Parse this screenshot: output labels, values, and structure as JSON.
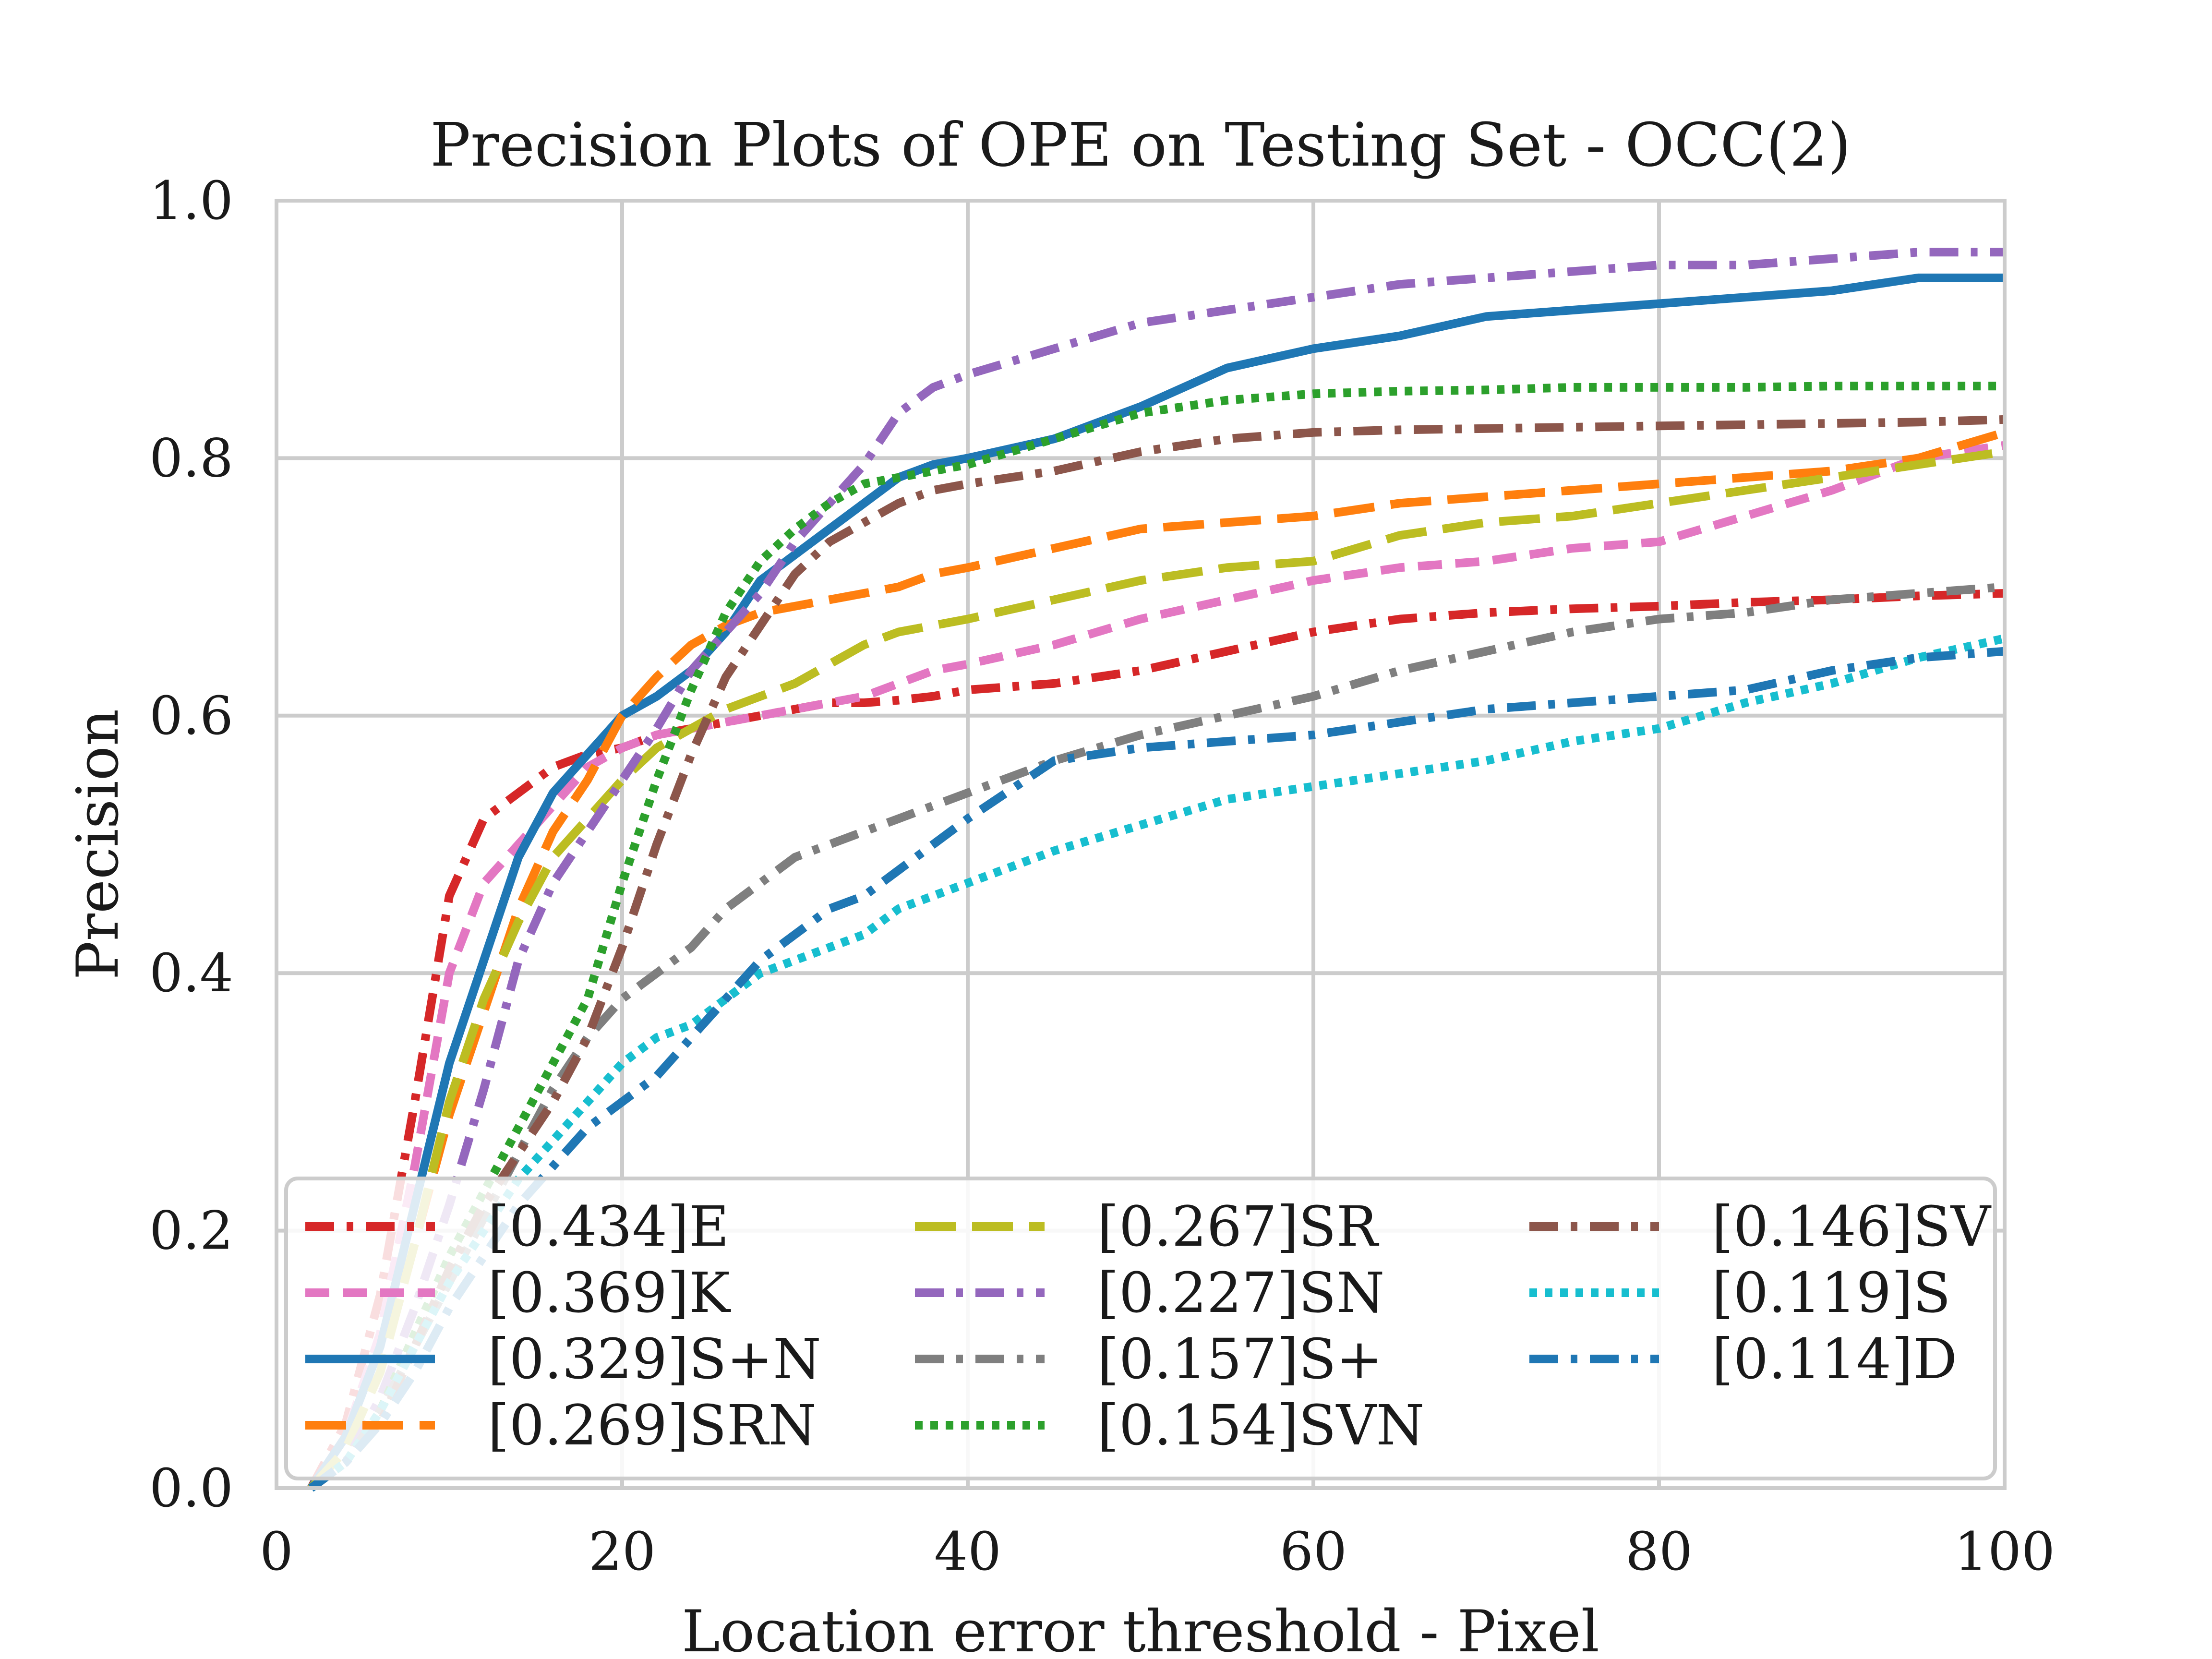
{
  "chart_data": {
    "type": "line",
    "title": "Precision Plots of OPE on Testing Set - OCC(2)",
    "xlabel": "Location error threshold - Pixel",
    "ylabel": "Precision",
    "xlim": [
      0,
      100
    ],
    "ylim": [
      0,
      1
    ],
    "xticks": [
      0,
      20,
      40,
      60,
      80,
      100
    ],
    "yticks": [
      0.0,
      0.2,
      0.4,
      0.6,
      0.8,
      1.0
    ],
    "ytick_labels": [
      "0.0",
      "0.2",
      "0.4",
      "0.6",
      "0.8",
      "1.0"
    ],
    "grid": true,
    "legend_placement": "lower-center",
    "legend_columns": 3,
    "x": [
      2,
      4,
      6,
      8,
      10,
      12,
      14,
      16,
      18,
      20,
      22,
      24,
      26,
      28,
      30,
      32,
      34,
      36,
      38,
      40,
      45,
      50,
      55,
      60,
      65,
      70,
      75,
      80,
      85,
      90,
      95,
      100
    ],
    "series": [
      {
        "name": "[0.434]E",
        "color": "#d62728",
        "dash": "dashdot",
        "values": [
          0.0,
          0.05,
          0.15,
          0.3,
          0.46,
          0.52,
          0.54,
          0.56,
          0.57,
          0.575,
          0.585,
          0.59,
          0.595,
          0.6,
          0.605,
          0.61,
          0.61,
          0.612,
          0.615,
          0.62,
          0.625,
          0.635,
          0.65,
          0.665,
          0.675,
          0.68,
          0.683,
          0.685,
          0.688,
          0.69,
          0.693,
          0.695
        ]
      },
      {
        "name": "[0.369]K",
        "color": "#e377c2",
        "dash": "dashed",
        "values": [
          0.0,
          0.04,
          0.12,
          0.25,
          0.4,
          0.47,
          0.5,
          0.53,
          0.56,
          0.575,
          0.585,
          0.59,
          0.595,
          0.6,
          0.605,
          0.61,
          0.615,
          0.625,
          0.635,
          0.64,
          0.655,
          0.675,
          0.69,
          0.705,
          0.715,
          0.72,
          0.73,
          0.735,
          0.755,
          0.775,
          0.8,
          0.81
        ]
      },
      {
        "name": "[0.329]S+N",
        "color": "#1f77b4",
        "dash": "solid",
        "values": [
          0.0,
          0.04,
          0.11,
          0.22,
          0.33,
          0.41,
          0.49,
          0.54,
          0.57,
          0.6,
          0.615,
          0.635,
          0.665,
          0.705,
          0.725,
          0.745,
          0.765,
          0.785,
          0.795,
          0.8,
          0.815,
          0.84,
          0.87,
          0.885,
          0.895,
          0.91,
          0.915,
          0.92,
          0.925,
          0.93,
          0.94,
          0.94
        ]
      },
      {
        "name": "[0.269]SRN",
        "color": "#ff7f0e",
        "dash": "longdash",
        "values": [
          0.0,
          0.03,
          0.09,
          0.19,
          0.29,
          0.37,
          0.45,
          0.51,
          0.55,
          0.6,
          0.63,
          0.655,
          0.67,
          0.68,
          0.685,
          0.69,
          0.695,
          0.7,
          0.71,
          0.715,
          0.73,
          0.745,
          0.75,
          0.755,
          0.765,
          0.77,
          0.775,
          0.78,
          0.785,
          0.79,
          0.8,
          0.82
        ]
      },
      {
        "name": "[0.267]SR",
        "color": "#bcbd22",
        "dash": "longdash",
        "values": [
          0.0,
          0.03,
          0.09,
          0.19,
          0.3,
          0.38,
          0.44,
          0.49,
          0.52,
          0.55,
          0.575,
          0.59,
          0.605,
          0.615,
          0.625,
          0.64,
          0.655,
          0.665,
          0.67,
          0.675,
          0.69,
          0.705,
          0.715,
          0.72,
          0.74,
          0.75,
          0.755,
          0.765,
          0.775,
          0.785,
          0.795,
          0.805
        ]
      },
      {
        "name": "[0.227]SN",
        "color": "#9467bd",
        "dash": "dashdot",
        "values": [
          0.0,
          0.02,
          0.07,
          0.14,
          0.22,
          0.31,
          0.41,
          0.47,
          0.51,
          0.55,
          0.59,
          0.635,
          0.665,
          0.695,
          0.735,
          0.765,
          0.795,
          0.835,
          0.855,
          0.865,
          0.885,
          0.905,
          0.915,
          0.925,
          0.935,
          0.94,
          0.945,
          0.95,
          0.95,
          0.955,
          0.96,
          0.96
        ]
      },
      {
        "name": "[0.157]S+",
        "color": "#7f7f7f",
        "dash": "dashdot",
        "values": [
          0.0,
          0.02,
          0.06,
          0.11,
          0.16,
          0.21,
          0.26,
          0.31,
          0.35,
          0.38,
          0.4,
          0.42,
          0.45,
          0.47,
          0.49,
          0.5,
          0.51,
          0.52,
          0.53,
          0.54,
          0.565,
          0.585,
          0.6,
          0.615,
          0.635,
          0.65,
          0.665,
          0.675,
          0.68,
          0.69,
          0.695,
          0.7
        ]
      },
      {
        "name": "[0.154]SVN",
        "color": "#2ca02c",
        "dash": "dotted",
        "values": [
          0.0,
          0.02,
          0.06,
          0.12,
          0.18,
          0.23,
          0.28,
          0.33,
          0.38,
          0.47,
          0.55,
          0.62,
          0.68,
          0.72,
          0.745,
          0.765,
          0.78,
          0.785,
          0.79,
          0.795,
          0.815,
          0.835,
          0.845,
          0.85,
          0.852,
          0.853,
          0.855,
          0.855,
          0.855,
          0.856,
          0.856,
          0.856
        ]
      },
      {
        "name": "[0.146]SV",
        "color": "#8c564b",
        "dash": "dashdot",
        "values": [
          0.0,
          0.02,
          0.05,
          0.11,
          0.17,
          0.22,
          0.26,
          0.3,
          0.35,
          0.42,
          0.5,
          0.57,
          0.63,
          0.67,
          0.71,
          0.735,
          0.75,
          0.765,
          0.775,
          0.78,
          0.79,
          0.805,
          0.815,
          0.82,
          0.822,
          0.823,
          0.824,
          0.825,
          0.826,
          0.827,
          0.828,
          0.83
        ]
      },
      {
        "name": "[0.119]S",
        "color": "#17becf",
        "dash": "dotted",
        "values": [
          0.0,
          0.02,
          0.06,
          0.11,
          0.16,
          0.2,
          0.24,
          0.27,
          0.3,
          0.33,
          0.35,
          0.36,
          0.38,
          0.4,
          0.41,
          0.42,
          0.43,
          0.45,
          0.46,
          0.47,
          0.495,
          0.515,
          0.535,
          0.545,
          0.555,
          0.565,
          0.58,
          0.59,
          0.61,
          0.625,
          0.645,
          0.66
        ]
      },
      {
        "name": "[0.114]D",
        "color": "#1f77b4",
        "dash": "dashdot",
        "values": [
          0.0,
          0.02,
          0.05,
          0.09,
          0.14,
          0.18,
          0.22,
          0.25,
          0.28,
          0.3,
          0.32,
          0.35,
          0.38,
          0.41,
          0.43,
          0.45,
          0.46,
          0.48,
          0.5,
          0.52,
          0.565,
          0.575,
          0.58,
          0.585,
          0.595,
          0.605,
          0.61,
          0.615,
          0.62,
          0.635,
          0.645,
          0.65
        ]
      }
    ]
  }
}
